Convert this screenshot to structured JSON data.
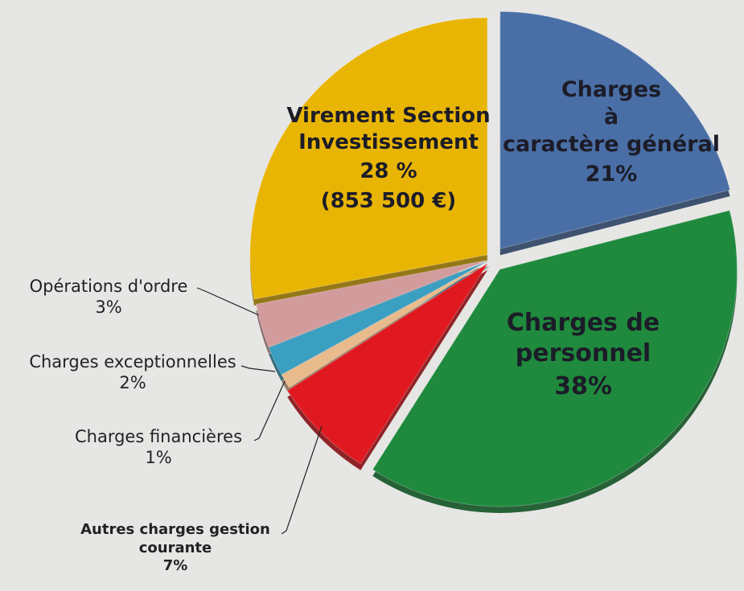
{
  "chart_data": {
    "type": "pie",
    "categories": [
      "Charges\nà\ncaractère général",
      "Charges de\npersonnel",
      "Autres charges gestion\ncourante",
      "Charges financières",
      "Charges exceptionnelles",
      "Opérations d'ordre",
      "Virement Section\nInvestissement"
    ],
    "values": [
      21,
      38,
      7,
      1,
      2,
      3,
      28
    ],
    "value_labels": [
      "21%",
      "38%",
      "7%",
      "1%",
      "2%",
      "3%",
      "28 %"
    ],
    "amount_label": "(853 500 €)",
    "colors": [
      "#4a6fa6",
      "#1f8a3d",
      "#e0181f",
      "#e9bb8c",
      "#3a9fc0",
      "#d39c9c",
      "#e9b505"
    ]
  }
}
